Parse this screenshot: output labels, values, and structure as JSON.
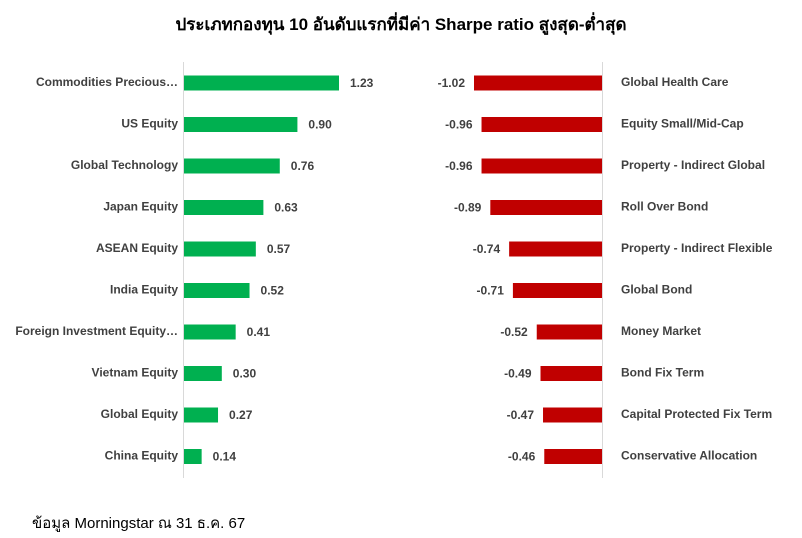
{
  "title": "ประเภทกองทุน 10 อันดับแรกที่มีค่า Sharpe ratio สูงสุด-ต่ำสุด",
  "source": "ข้อมูล Morningstar ณ 31 ธ.ค. 67",
  "colors": {
    "positive": "#00b050",
    "negative": "#c00000",
    "label": "#404040",
    "axis": "#d9d9d9"
  },
  "chart_data": [
    {
      "type": "bar",
      "orientation": "horizontal",
      "categories": [
        "Commodities Precious…",
        "US Equity",
        "Global Technology",
        "Japan Equity",
        "ASEAN Equity",
        "India Equity",
        "Foreign Investment Equity…",
        "Vietnam Equity",
        "Global Equity",
        "China Equity"
      ],
      "values": [
        1.23,
        0.9,
        0.76,
        0.63,
        0.57,
        0.52,
        0.41,
        0.3,
        0.27,
        0.14
      ],
      "value_labels": [
        "1.23",
        "0.90",
        "0.76",
        "0.63",
        "0.57",
        "0.52",
        "0.41",
        "0.30",
        "0.27",
        "0.14"
      ],
      "color": "#00b050",
      "xlim": [
        0,
        1.23
      ]
    },
    {
      "type": "bar",
      "orientation": "horizontal",
      "categories": [
        "Global Health Care",
        "Equity Small/Mid-Cap",
        "Property - Indirect Global",
        "Roll Over Bond",
        "Property - Indirect Flexible",
        "Global Bond",
        "Money Market",
        "Bond Fix Term",
        "Capital Protected Fix Term",
        "Conservative Allocation"
      ],
      "values": [
        -1.02,
        -0.96,
        -0.96,
        -0.89,
        -0.74,
        -0.71,
        -0.52,
        -0.49,
        -0.47,
        -0.46
      ],
      "value_labels": [
        "-1.02",
        "-0.96",
        "-0.96",
        "-0.89",
        "-0.74",
        "-0.71",
        "-0.52",
        "-0.49",
        "-0.47",
        "-0.46"
      ],
      "color": "#c00000",
      "xlim": [
        -1.02,
        0
      ]
    }
  ]
}
